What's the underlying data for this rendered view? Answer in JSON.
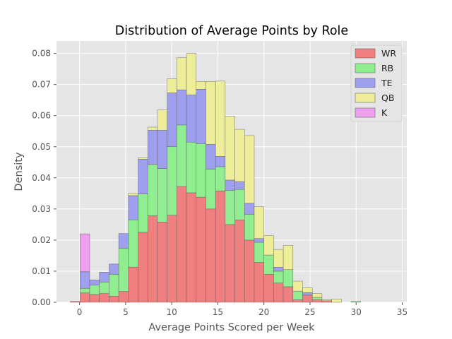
{
  "chart_data": {
    "type": "bar",
    "stacked": true,
    "title": "Distribution of Average Points by Role",
    "xlabel": "Average Points Scored per Week",
    "ylabel": "Density",
    "xlim": [
      -2.5,
      35.5
    ],
    "ylim": [
      0,
      0.084
    ],
    "xticks": [
      0,
      5,
      10,
      15,
      20,
      25,
      30,
      35
    ],
    "yticks": [
      0.0,
      0.01,
      0.02,
      0.03,
      0.04,
      0.05,
      0.06,
      0.07,
      0.08
    ],
    "ytick_labels": [
      "0.00",
      "0.01",
      "0.02",
      "0.03",
      "0.04",
      "0.05",
      "0.06",
      "0.07",
      "0.08"
    ],
    "bin_width": 1.05,
    "bin_starts": [
      -1.0,
      0.05,
      1.1,
      2.15,
      3.2,
      4.25,
      5.3,
      6.35,
      7.4,
      8.45,
      9.5,
      10.55,
      11.6,
      12.65,
      13.7,
      14.75,
      15.8,
      16.85,
      17.9,
      18.95,
      20.0,
      21.05,
      22.1,
      23.15,
      24.2,
      25.25,
      26.3,
      27.35,
      28.4,
      29.45,
      30.5
    ],
    "series": [
      {
        "name": "WR",
        "color": "#f08080",
        "values": [
          0.0003,
          0.003,
          0.0025,
          0.0028,
          0.002,
          0.0035,
          0.0113,
          0.0225,
          0.0278,
          0.0258,
          0.028,
          0.0372,
          0.0352,
          0.0338,
          0.03,
          0.0358,
          0.025,
          0.0265,
          0.02,
          0.0128,
          0.009,
          0.0062,
          0.005,
          0.0008,
          0.0023,
          0.0008,
          0.0005,
          0,
          0,
          0,
          0
        ]
      },
      {
        "name": "RB",
        "color": "#90ee90",
        "values": [
          0,
          0.0015,
          0.003,
          0.0037,
          0.007,
          0.0138,
          0.0152,
          0.0123,
          0.0165,
          0.0172,
          0.022,
          0.0198,
          0.0163,
          0.0172,
          0.0128,
          0.0078,
          0.011,
          0.0098,
          0.0083,
          0.0065,
          0.0062,
          0.0038,
          0.0055,
          0.0028,
          0,
          0.0008,
          0,
          0,
          0,
          0.0003,
          0
        ]
      },
      {
        "name": "TE",
        "color": "#9f9fef",
        "values": [
          0,
          0.0053,
          0.0017,
          0.0032,
          0.0033,
          0.0048,
          0.0078,
          0.0112,
          0.011,
          0.0123,
          0.0173,
          0.0113,
          0.0152,
          0.0175,
          0.008,
          0.0033,
          0.0033,
          0.0025,
          0.0035,
          0.0012,
          0,
          0.0013,
          0,
          0,
          0.0008,
          0,
          0,
          0,
          0,
          0,
          0
        ]
      },
      {
        "name": "QB",
        "color": "#eeee9a",
        "values": [
          0,
          0,
          0,
          0,
          0,
          0,
          0.0008,
          0.0005,
          0.001,
          0.0065,
          0.0045,
          0.0103,
          0.0133,
          0.0025,
          0.0202,
          0.0242,
          0.0205,
          0.0168,
          0.0218,
          0.0102,
          0.0062,
          0.0057,
          0.0078,
          0.0032,
          0.0016,
          0.0012,
          0.0003,
          0.001,
          0,
          0,
          0
        ]
      },
      {
        "name": "K",
        "color": "#ee9fee",
        "values": [
          0,
          0.0122,
          0,
          0,
          0,
          0,
          0,
          0,
          0,
          0,
          0,
          0,
          0,
          0,
          0,
          0,
          0,
          0,
          0,
          0,
          0,
          0,
          0,
          0,
          0,
          0,
          0,
          0,
          0,
          0,
          0
        ]
      }
    ],
    "legend_position": "top-right",
    "grid": true,
    "style": "ggplot"
  }
}
